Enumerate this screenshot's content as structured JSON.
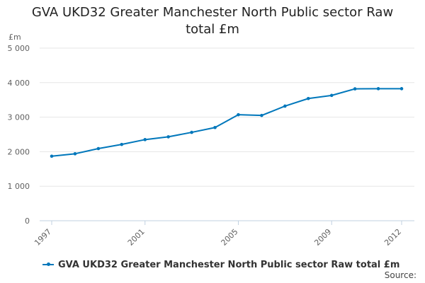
{
  "chart_data": {
    "type": "line",
    "title": "GVA UKD32 Greater Manchester North Public sector Raw total £m",
    "title_lines": [
      "GVA UKD32 Greater Manchester North Public sector Raw",
      "total £m"
    ],
    "ylabel": "£m",
    "xlabel": "",
    "ylim": [
      0,
      5000
    ],
    "y_ticks": [
      {
        "value": 0,
        "label": "0"
      },
      {
        "value": 1000,
        "label": "1 000"
      },
      {
        "value": 2000,
        "label": "2 000"
      },
      {
        "value": 3000,
        "label": "3 000"
      },
      {
        "value": 4000,
        "label": "4 000"
      },
      {
        "value": 5000,
        "label": "5 000"
      }
    ],
    "x_ticks": [
      {
        "value": 1997,
        "label": "1997"
      },
      {
        "value": 2001,
        "label": "2001"
      },
      {
        "value": 2005,
        "label": "2005"
      },
      {
        "value": 2009,
        "label": "2009"
      },
      {
        "value": 2012,
        "label": "2012"
      }
    ],
    "x": [
      1997,
      1998,
      1999,
      2000,
      2001,
      2002,
      2003,
      2004,
      2005,
      2006,
      2007,
      2008,
      2009,
      2010,
      2011,
      2012
    ],
    "series": [
      {
        "name": "GVA UKD32 Greater Manchester North Public sector Raw total £m",
        "values": [
          1870,
          1940,
          2090,
          2210,
          2350,
          2430,
          2560,
          2700,
          3070,
          3050,
          3320,
          3540,
          3630,
          3820,
          3825,
          3825
        ]
      }
    ],
    "grid": true,
    "legend_position": "bottom-left",
    "line_color": "#0077bb",
    "grid_color": "#e6e6e6",
    "axis_color": "#c0d0e0"
  },
  "source_label": "Source:"
}
